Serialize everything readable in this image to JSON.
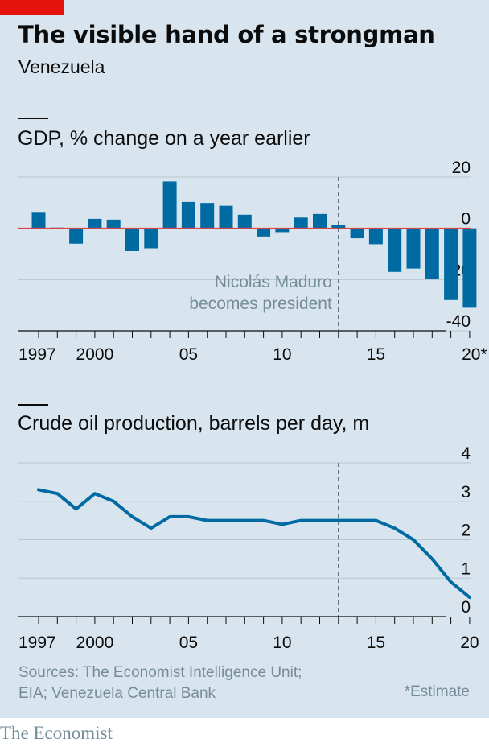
{
  "header": {
    "title": "The visible hand of a strongman",
    "subtitle": "Venezuela"
  },
  "footer": {
    "sources_line1": "Sources: The Economist Intelligence Unit;",
    "sources_line2": "EIA; Venezuela Central Bank",
    "footnote": "*Estimate",
    "brand": "The Economist"
  },
  "colors": {
    "background": "#d9e5ee",
    "bar": "#006ba2",
    "line": "#006ba2",
    "zero_line": "#db444b",
    "grid": "#b7c6cf",
    "marker_line": "#5c6f79",
    "annotation": "#758d99",
    "brand_tab": "#e3120b"
  },
  "chart_data": [
    {
      "type": "bar",
      "title": "GDP, % change on a year earlier",
      "categories": [
        1997,
        1998,
        1999,
        2000,
        2001,
        2002,
        2003,
        2004,
        2005,
        2006,
        2007,
        2008,
        2009,
        2010,
        2011,
        2012,
        2013,
        2014,
        2015,
        2016,
        2017,
        2018,
        2019,
        2020
      ],
      "values": [
        6.4,
        0.3,
        -6.0,
        3.7,
        3.4,
        -8.9,
        -7.8,
        18.3,
        10.3,
        9.9,
        8.8,
        5.3,
        -3.2,
        -1.5,
        4.2,
        5.6,
        1.3,
        -3.9,
        -6.2,
        -17.0,
        -15.7,
        -19.6,
        -28.0,
        -31.0
      ],
      "ylim": [
        -40,
        20
      ],
      "yticks": [
        20,
        0,
        -20,
        -40
      ],
      "ytick_labels": [
        "20",
        "0",
        "-20",
        "-40"
      ],
      "xtick_labels": [
        {
          "year": 1997,
          "label": "1997"
        },
        {
          "year": 2000,
          "label": "2000"
        },
        {
          "year": 2005,
          "label": "05"
        },
        {
          "year": 2010,
          "label": "10"
        },
        {
          "year": 2015,
          "label": "15"
        },
        {
          "year": 2020,
          "label": "20*"
        }
      ],
      "annotation": {
        "year": 2013,
        "lines": [
          "Nicolás Maduro",
          "becomes president"
        ]
      },
      "grid": true
    },
    {
      "type": "line",
      "title": "Crude oil production, barrels per day, m",
      "x": [
        1997,
        1998,
        1999,
        2000,
        2001,
        2002,
        2003,
        2004,
        2005,
        2006,
        2007,
        2008,
        2009,
        2010,
        2011,
        2012,
        2013,
        2014,
        2015,
        2016,
        2017,
        2018,
        2019,
        2020
      ],
      "y": [
        3.3,
        3.2,
        2.8,
        3.2,
        3.0,
        2.6,
        2.3,
        2.6,
        2.6,
        2.5,
        2.5,
        2.5,
        2.5,
        2.4,
        2.5,
        2.5,
        2.5,
        2.5,
        2.5,
        2.3,
        2.0,
        1.5,
        0.9,
        0.5
      ],
      "ylim": [
        0,
        4
      ],
      "yticks": [
        4,
        3,
        2,
        1,
        0
      ],
      "ytick_labels": [
        "4",
        "3",
        "2",
        "1",
        "0"
      ],
      "xtick_labels": [
        {
          "year": 1997,
          "label": "1997"
        },
        {
          "year": 2000,
          "label": "2000"
        },
        {
          "year": 2005,
          "label": "05"
        },
        {
          "year": 2010,
          "label": "10"
        },
        {
          "year": 2015,
          "label": "15"
        },
        {
          "year": 2020,
          "label": "20"
        }
      ],
      "marker_year": 2013,
      "grid": true
    }
  ]
}
